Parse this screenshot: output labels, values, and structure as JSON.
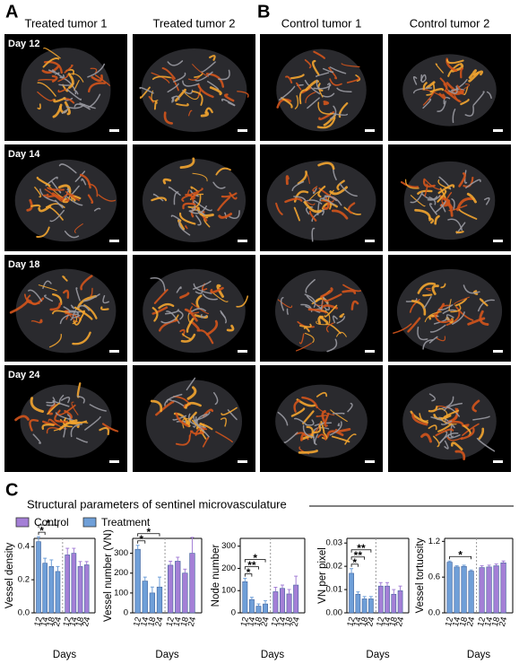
{
  "panels": [
    {
      "label": "A",
      "columns": [
        "Treated tumor 1",
        "Treated tumor 2"
      ]
    },
    {
      "label": "B",
      "columns": [
        "Control tumor 1",
        "Control tumor 2"
      ]
    }
  ],
  "days": [
    "Day 12",
    "Day 14",
    "Day 18",
    "Day 24"
  ],
  "panel_c": {
    "label": "C",
    "title": "Structural parameters of sentinel microvasculature"
  },
  "chart_data": [
    {
      "type": "bar",
      "ylabel": "Vessel  density",
      "xlabel": "Days",
      "categories": [
        "12",
        "14",
        "18",
        "24",
        "12",
        "14",
        "18",
        "24"
      ],
      "series": [
        {
          "name": "Control",
          "color": "#a47fd6",
          "values": [
            null,
            null,
            null,
            null,
            0.35,
            0.36,
            0.28,
            0.29
          ],
          "errors": [
            null,
            null,
            null,
            null,
            0.04,
            0.03,
            0.03,
            0.02
          ]
        },
        {
          "name": "Treatment",
          "color": "#6f9fd8",
          "values": [
            0.43,
            0.3,
            0.28,
            0.25,
            null,
            null,
            null,
            null
          ],
          "errors": [
            0.03,
            0.03,
            0.04,
            0.03,
            null,
            null,
            null,
            null
          ]
        }
      ],
      "ylim": [
        0,
        0.45
      ],
      "yticks": [
        {
          "value": 0,
          "label": "0.0"
        },
        0.2,
        0.4
      ],
      "annotations": [
        {
          "label": "*",
          "between": [
            "12",
            "14"
          ]
        },
        {
          "label": "*",
          "between": [
            "12",
            "24"
          ]
        }
      ]
    },
    {
      "type": "bar",
      "ylabel": "Vessel number (VN)",
      "xlabel": "Days",
      "categories": [
        "12",
        "14",
        "18",
        "24",
        "12",
        "14",
        "18",
        "24"
      ],
      "series": [
        {
          "name": "Control",
          "color": "#a47fd6",
          "values": [
            null,
            null,
            null,
            null,
            240,
            260,
            200,
            300
          ],
          "errors": [
            null,
            null,
            null,
            null,
            20,
            20,
            20,
            80
          ]
        },
        {
          "name": "Treatment",
          "color": "#6f9fd8",
          "values": [
            320,
            160,
            100,
            130,
            null,
            null,
            null,
            null
          ],
          "errors": [
            20,
            20,
            30,
            50,
            null,
            null,
            null,
            null
          ]
        }
      ],
      "ylim": [
        0,
        375
      ],
      "yticks": [
        0,
        100,
        200,
        300
      ],
      "annotations": [
        {
          "label": "*",
          "between": [
            "12",
            "14"
          ]
        },
        {
          "label": "*",
          "between": [
            "12",
            "24"
          ]
        }
      ]
    },
    {
      "type": "bar",
      "ylabel": "Node number",
      "xlabel": "Days",
      "categories": [
        "12",
        "14",
        "18",
        "24",
        "12",
        "14",
        "18",
        "24"
      ],
      "series": [
        {
          "name": "Control",
          "color": "#a47fd6",
          "values": [
            null,
            null,
            null,
            null,
            95,
            110,
            85,
            125
          ],
          "errors": [
            null,
            null,
            null,
            null,
            20,
            15,
            20,
            40
          ]
        },
        {
          "name": "Treatment",
          "color": "#6f9fd8",
          "values": [
            140,
            60,
            30,
            40,
            null,
            null,
            null,
            null
          ],
          "errors": [
            15,
            10,
            10,
            15,
            null,
            null,
            null,
            null
          ]
        }
      ],
      "ylim": [
        0,
        335
      ],
      "yticks": [
        0,
        100,
        200,
        300
      ],
      "annotations": [
        {
          "label": "*",
          "between": [
            "12",
            "14"
          ]
        },
        {
          "label": "**",
          "between": [
            "12",
            "18"
          ]
        },
        {
          "label": "*",
          "between": [
            "12",
            "24"
          ]
        }
      ]
    },
    {
      "type": "bar",
      "ylabel": "VN per pixel",
      "xlabel": "Days",
      "categories": [
        "12",
        "14",
        "18",
        "24",
        "12",
        "14",
        "18",
        "24"
      ],
      "series": [
        {
          "name": "Control",
          "color": "#a47fd6",
          "values": [
            null,
            null,
            null,
            null,
            0.0115,
            0.0115,
            0.008,
            0.0095
          ],
          "errors": [
            null,
            null,
            null,
            null,
            0.0015,
            0.0015,
            0.002,
            0.002
          ]
        },
        {
          "name": "Treatment",
          "color": "#6f9fd8",
          "values": [
            0.017,
            0.008,
            0.006,
            0.006,
            null,
            null,
            null,
            null
          ],
          "errors": [
            0.002,
            0.001,
            0.001,
            0.001,
            null,
            null,
            null,
            null
          ]
        }
      ],
      "ylim": [
        0,
        0.032
      ],
      "yticks": [
        {
          "value": 0,
          "label": "0.00"
        },
        0.01,
        0.02,
        0.03
      ],
      "annotations": [
        {
          "label": "*",
          "between": [
            "12",
            "14"
          ]
        },
        {
          "label": "**",
          "between": [
            "12",
            "18"
          ]
        },
        {
          "label": "**",
          "between": [
            "12",
            "24"
          ]
        }
      ]
    },
    {
      "type": "bar",
      "ylabel": "Vessel tortuosity",
      "xlabel": "Days",
      "categories": [
        "12",
        "14",
        "18",
        "24",
        "12",
        "14",
        "18",
        "24"
      ],
      "series": [
        {
          "name": "Control",
          "color": "#a47fd6",
          "values": [
            null,
            null,
            null,
            null,
            0.76,
            0.77,
            0.79,
            0.84
          ],
          "errors": [
            null,
            null,
            null,
            null,
            0.03,
            0.03,
            0.03,
            0.03
          ]
        },
        {
          "name": "Treatment",
          "color": "#6f9fd8",
          "values": [
            0.85,
            0.77,
            0.78,
            0.7,
            null,
            null,
            null,
            null
          ],
          "errors": [
            0.02,
            0.02,
            0.02,
            0.02,
            null,
            null,
            null,
            null
          ]
        }
      ],
      "ylim": [
        0,
        1.25
      ],
      "yticks": [
        {
          "value": 0,
          "label": "0.0"
        },
        0.6,
        1.2
      ],
      "annotations": [
        {
          "label": "*",
          "between": [
            "12",
            "24"
          ]
        }
      ]
    }
  ]
}
